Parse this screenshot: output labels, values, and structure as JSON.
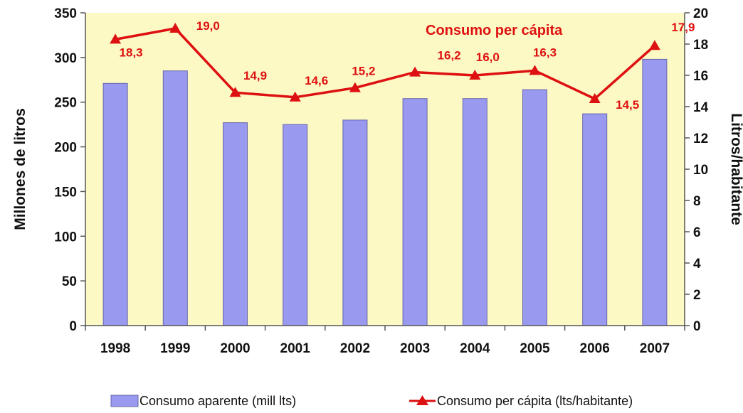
{
  "chart_data": {
    "type": "bar",
    "categories": [
      "1998",
      "1999",
      "2000",
      "2001",
      "2002",
      "2003",
      "2004",
      "2005",
      "2006",
      "2007"
    ],
    "series": [
      {
        "name": "Consumo aparente (mill lts)",
        "type": "bar",
        "axis": "left",
        "color": "#9999f0",
        "values": [
          271,
          285,
          227,
          225,
          230,
          254,
          254,
          264,
          237,
          298
        ]
      },
      {
        "name": "Consumo per cápita (lts/habitante)",
        "type": "line",
        "axis": "right",
        "color": "#dd1111",
        "marker": "triangle",
        "values": [
          18.3,
          19.0,
          14.9,
          14.6,
          15.2,
          16.2,
          16.0,
          16.3,
          14.5,
          17.9
        ],
        "labels": [
          "18,3",
          "19,0",
          "14,9",
          "14,6",
          "15,2",
          "16,2",
          "16,0",
          "16,3",
          "14,5",
          "17,9"
        ]
      }
    ],
    "annotation": "Consumo per cápita",
    "ylabel": "Millones de litros",
    "y2label": "Litros/habitante",
    "ylim": [
      0,
      350
    ],
    "yticks": [
      0,
      50,
      100,
      150,
      200,
      250,
      300,
      350
    ],
    "y2lim": [
      0,
      20
    ],
    "y2ticks": [
      0,
      2,
      4,
      6,
      8,
      10,
      12,
      14,
      16,
      18,
      20
    ],
    "grid": false,
    "plot_background": "#fdf9c4",
    "legend_position": "bottom"
  }
}
